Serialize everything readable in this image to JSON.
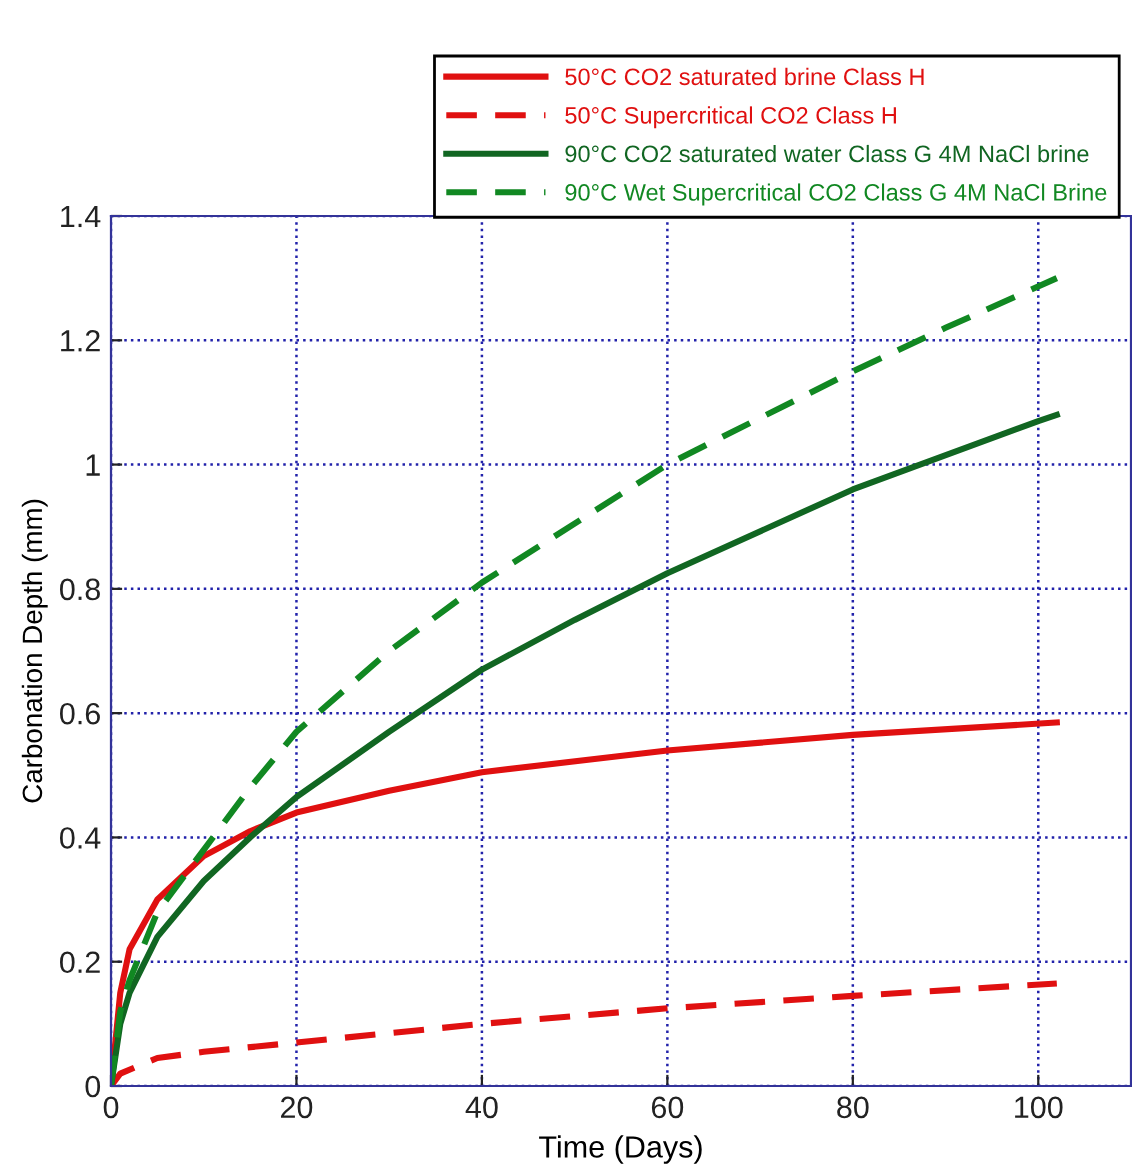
{
  "chart_data": {
    "type": "line",
    "xlabel": "Time (Days)",
    "ylabel": "Carbonation Depth (mm)",
    "xlim": [
      0,
      110
    ],
    "xticks": [
      0,
      20,
      40,
      60,
      80,
      100
    ],
    "ylim": [
      0,
      1.4
    ],
    "yticks": [
      0,
      0.2,
      0.4,
      0.6,
      0.8,
      1,
      1.2,
      1.4
    ],
    "grid": true,
    "legend": "top right",
    "marker": "none",
    "series": [
      {
        "name": "50°C CO2 saturated brine Class H",
        "color": "#e01010",
        "line_style": "solid",
        "x": [
          0,
          1,
          2,
          5,
          10,
          15,
          20,
          30,
          40,
          60,
          80,
          102
        ],
        "values": [
          0,
          0.15,
          0.22,
          0.3,
          0.37,
          0.41,
          0.44,
          0.475,
          0.505,
          0.54,
          0.565,
          0.585
        ]
      },
      {
        "name": "50°C Supercritical CO2 Class H",
        "color": "#e01010",
        "line_style": "dashed",
        "x": [
          0,
          1,
          5,
          10,
          20,
          40,
          60,
          80,
          102
        ],
        "values": [
          0,
          0.02,
          0.045,
          0.055,
          0.07,
          0.1,
          0.125,
          0.145,
          0.165
        ]
      },
      {
        "name": "90°C CO2 saturated water Class G 4M NaCl brine",
        "color": "#116622",
        "line_style": "solid",
        "x": [
          0,
          1,
          2,
          5,
          10,
          15,
          20,
          30,
          40,
          50,
          60,
          80,
          100,
          102
        ],
        "values": [
          0,
          0.1,
          0.15,
          0.24,
          0.33,
          0.4,
          0.465,
          0.57,
          0.67,
          0.75,
          0.825,
          0.96,
          1.07,
          1.08
        ]
      },
      {
        "name": "90°C Wet Supercritical CO2 Class G 4M NaCl Brine",
        "color": "#118822",
        "line_style": "dashed",
        "x": [
          0,
          1,
          2,
          5,
          10,
          15,
          20,
          30,
          40,
          60,
          80,
          90,
          102
        ],
        "values": [
          0,
          0.12,
          0.17,
          0.28,
          0.38,
          0.48,
          0.57,
          0.7,
          0.81,
          1.0,
          1.15,
          1.22,
          1.3
        ]
      }
    ]
  }
}
